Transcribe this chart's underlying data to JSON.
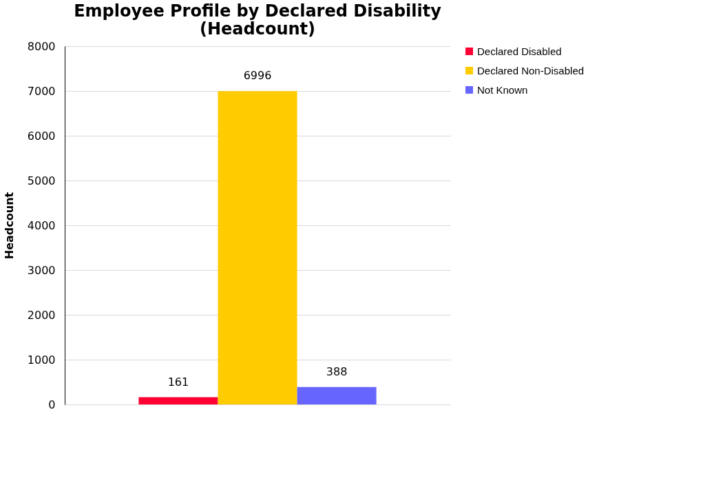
{
  "chart_data": {
    "type": "bar",
    "title": [
      "Employee Profile by Declared Disability",
      "(Headcount)"
    ],
    "ylabel": "Headcount",
    "categories": [
      null
    ],
    "series": [
      {
        "name": "Declared Disabled",
        "color": "#ff0033",
        "values": [
          161
        ]
      },
      {
        "name": "Declared Non-Disabled",
        "color": "#ffcc00",
        "values": [
          6996
        ]
      },
      {
        "name": "Not Known",
        "color": "#6666ff",
        "values": [
          388
        ]
      }
    ],
    "ylim": [
      0,
      8000
    ],
    "yticks": [
      0,
      1000,
      2000,
      3000,
      4000,
      5000,
      6000,
      7000,
      8000
    ],
    "grid": "y",
    "legend": "right",
    "data_labels": true,
    "tick_labels": "y"
  }
}
